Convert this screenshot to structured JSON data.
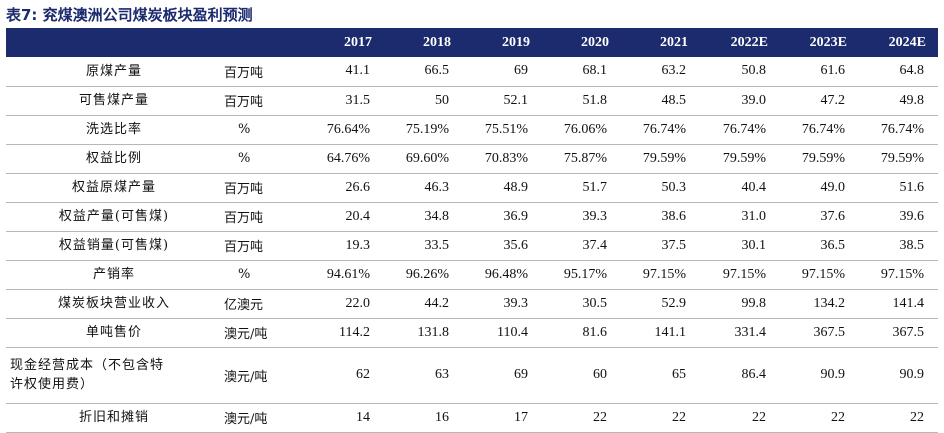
{
  "title": "表7:  兖煤澳洲公司煤炭板块盈利预测",
  "columns": [
    "2017",
    "2018",
    "2019",
    "2020",
    "2021",
    "2022E",
    "2023E",
    "2024E"
  ],
  "rows": [
    {
      "name": "原煤产量",
      "unit": "百万吨",
      "values": [
        "41.1",
        "66.5",
        "69",
        "68.1",
        "63.2",
        "50.8",
        "61.6",
        "64.8"
      ]
    },
    {
      "name": "可售煤产量",
      "unit": "百万吨",
      "values": [
        "31.5",
        "50",
        "52.1",
        "51.8",
        "48.5",
        "39.0",
        "47.2",
        "49.8"
      ]
    },
    {
      "name": "洗选比率",
      "unit": "%",
      "values": [
        "76.64%",
        "75.19%",
        "75.51%",
        "76.06%",
        "76.74%",
        "76.74%",
        "76.74%",
        "76.74%"
      ]
    },
    {
      "name": "权益比例",
      "unit": "%",
      "values": [
        "64.76%",
        "69.60%",
        "70.83%",
        "75.87%",
        "79.59%",
        "79.59%",
        "79.59%",
        "79.59%"
      ]
    },
    {
      "name": "权益原煤产量",
      "unit": "百万吨",
      "values": [
        "26.6",
        "46.3",
        "48.9",
        "51.7",
        "50.3",
        "40.4",
        "49.0",
        "51.6"
      ]
    },
    {
      "name": "权益产量(可售煤)",
      "unit": "百万吨",
      "values": [
        "20.4",
        "34.8",
        "36.9",
        "39.3",
        "38.6",
        "31.0",
        "37.6",
        "39.6"
      ]
    },
    {
      "name": "权益销量(可售煤)",
      "unit": "百万吨",
      "values": [
        "19.3",
        "33.5",
        "35.6",
        "37.4",
        "37.5",
        "30.1",
        "36.5",
        "38.5"
      ]
    },
    {
      "name": "产销率",
      "unit": "%",
      "values": [
        "94.61%",
        "96.26%",
        "96.48%",
        "95.17%",
        "97.15%",
        "97.15%",
        "97.15%",
        "97.15%"
      ]
    },
    {
      "name": "煤炭板块营业收入",
      "unit": "亿澳元",
      "values": [
        "22.0",
        "44.2",
        "39.3",
        "30.5",
        "52.9",
        "99.8",
        "134.2",
        "141.4"
      ]
    },
    {
      "name": "单吨售价",
      "unit": "澳元/吨",
      "values": [
        "114.2",
        "131.8",
        "110.4",
        "81.6",
        "141.1",
        "331.4",
        "367.5",
        "367.5"
      ]
    },
    {
      "name_line1": "现金经营成本（不包含特",
      "name_line2": "许权使用费）",
      "unit": "澳元/吨",
      "values": [
        "62",
        "63",
        "69",
        "60",
        "65",
        "86.4",
        "90.9",
        "90.9"
      ]
    },
    {
      "name": "折旧和摊销",
      "unit": "澳元/吨",
      "values": [
        "14",
        "16",
        "17",
        "22",
        "22",
        "22",
        "22",
        "22"
      ]
    }
  ]
}
